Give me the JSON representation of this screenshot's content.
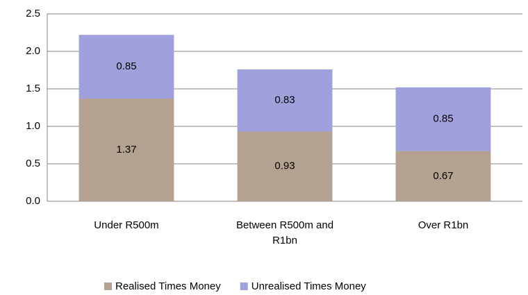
{
  "chart_data": {
    "type": "stacked_bar",
    "categories": [
      "Under R500m",
      "Between R500m and R1bn",
      "Over R1bn"
    ],
    "series": [
      {
        "name": "Realised Times Money",
        "color": "#b3a290",
        "values": [
          1.37,
          0.93,
          0.67
        ]
      },
      {
        "name": "Unrealised Times Money",
        "color": "#a0a0dc",
        "values": [
          0.85,
          0.83,
          0.85
        ]
      }
    ],
    "ylim": [
      0,
      2.5
    ],
    "yticks": [
      {
        "value": 0,
        "label": "0.0"
      },
      0.5,
      {
        "value": 1,
        "label": "1.0"
      },
      1.5,
      {
        "value": 2,
        "label": "2.0"
      },
      2.5
    ],
    "grid": true,
    "legend": "bottom"
  }
}
